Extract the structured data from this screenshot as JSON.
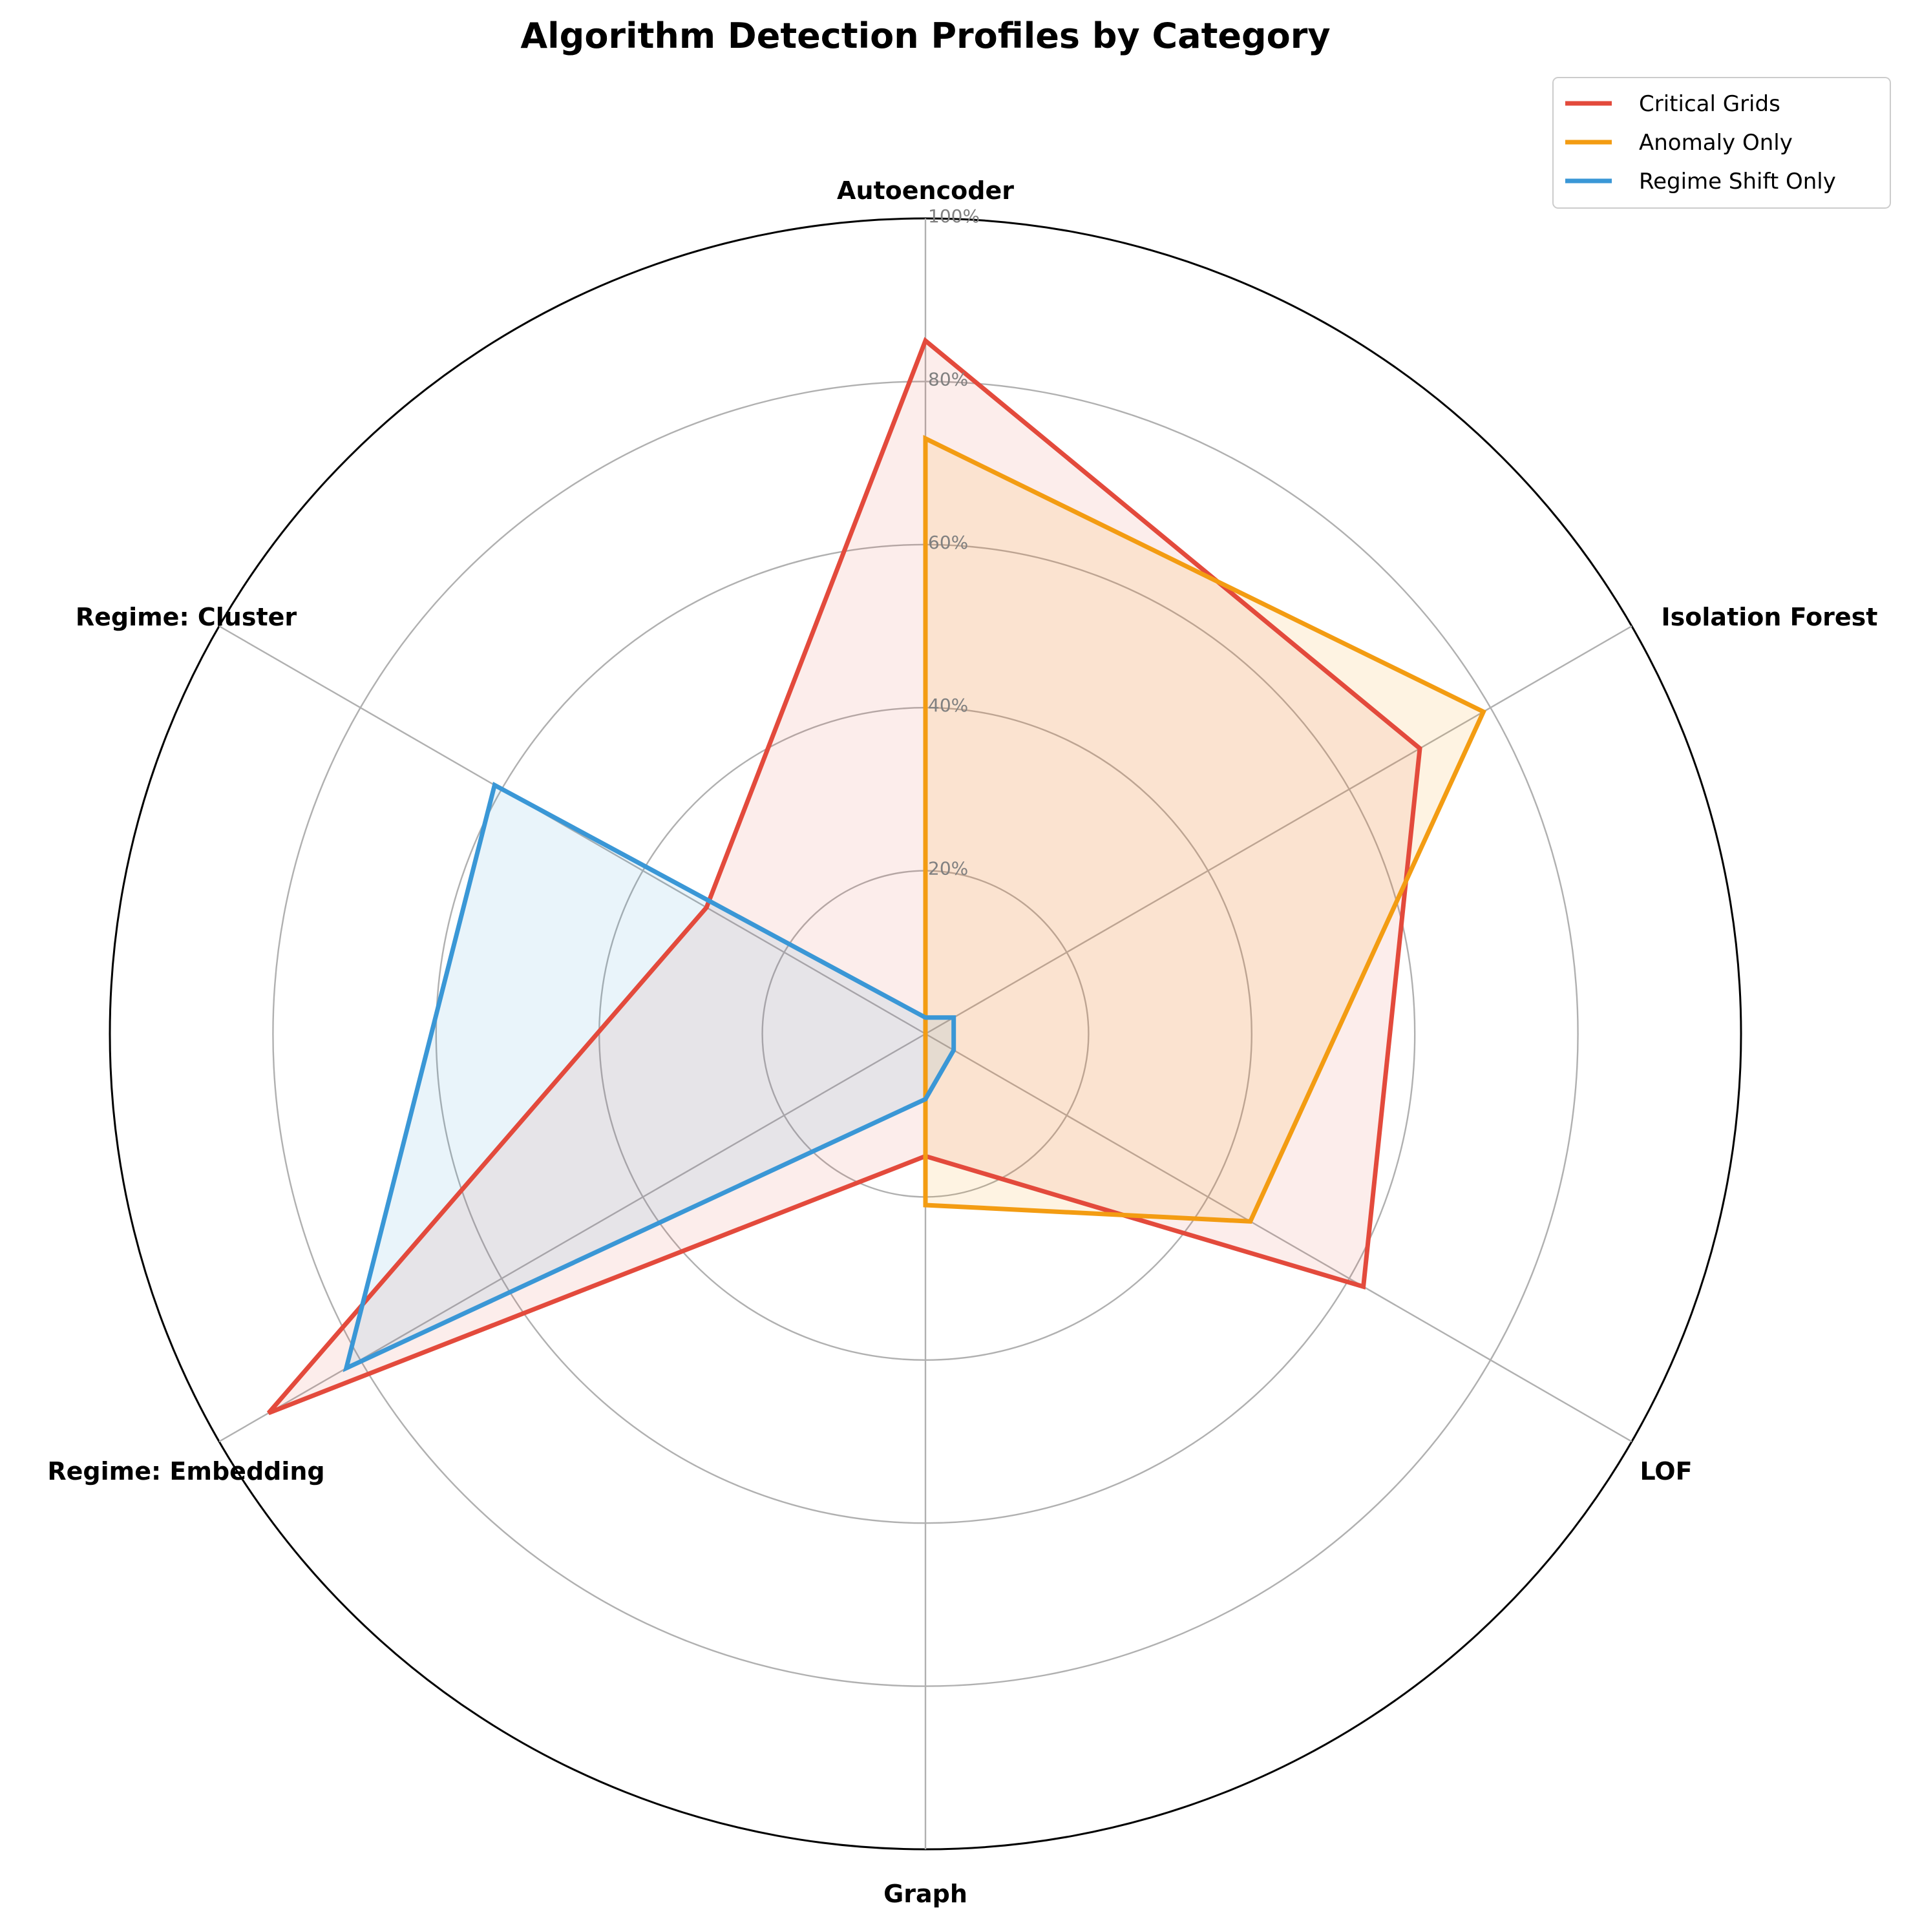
{
  "chart_data": {
    "type": "radar",
    "title": "Algorithm Detection Profiles by Category",
    "categories": [
      "Autoencoder",
      "Isolation Forest",
      "LOF",
      "Graph",
      "Regime: Embedding",
      "Regime: Cluster"
    ],
    "radial_ticks": [
      20,
      40,
      60,
      80,
      100
    ],
    "radial_tick_labels": [
      "20%",
      "40%",
      "60%",
      "80%",
      "100%"
    ],
    "rlim": [
      0,
      100
    ],
    "grid": true,
    "legend_position": "top-right",
    "series": [
      {
        "name": "Critical Grids",
        "color": "#e34a3c",
        "values": [
          85,
          70,
          62,
          15,
          93,
          31
        ]
      },
      {
        "name": "Anomaly Only",
        "color": "#f39c12",
        "values": [
          73,
          79,
          46,
          21,
          0,
          0
        ]
      },
      {
        "name": "Regime Shift Only",
        "color": "#3a97d6",
        "values": [
          2,
          4,
          4,
          8,
          82,
          61
        ]
      }
    ]
  }
}
